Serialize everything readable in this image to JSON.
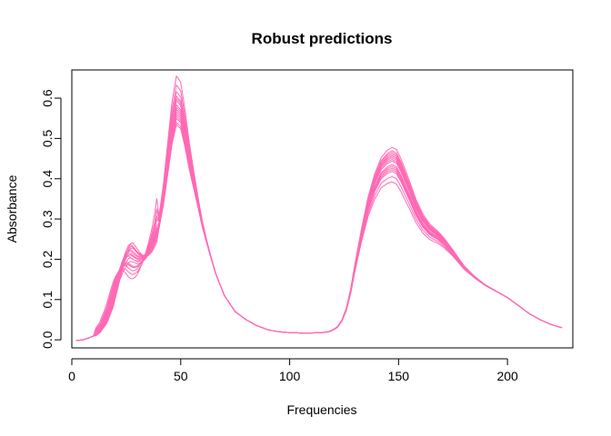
{
  "chart_data": {
    "type": "line",
    "title": "Robust predictions",
    "xlabel": "Frequencies",
    "ylabel": "Absorbance",
    "xlim": [
      0,
      230
    ],
    "ylim": [
      -0.02,
      0.67
    ],
    "xticks": [
      0,
      50,
      100,
      150,
      200
    ],
    "yticks": [
      0.0,
      0.1,
      0.2,
      0.3,
      0.4,
      0.5,
      0.6
    ],
    "ytick_labels": [
      "0.0",
      "0.1",
      "0.2",
      "0.3",
      "0.4",
      "0.5",
      "0.6"
    ],
    "line_color": "#ff69b4",
    "grid": false,
    "legend": "none",
    "base_curve": {
      "x": [
        2,
        5,
        8,
        10,
        12,
        15,
        18,
        20,
        22,
        24,
        26,
        27,
        28,
        30,
        32,
        34,
        36,
        38,
        40,
        42,
        44,
        46,
        48,
        50,
        52,
        54,
        56,
        58,
        60,
        63,
        66,
        70,
        75,
        80,
        85,
        90,
        95,
        100,
        105,
        110,
        115,
        118,
        120,
        122,
        124,
        126,
        128,
        130,
        133,
        136,
        139,
        142,
        145,
        147,
        149,
        151,
        153,
        155,
        158,
        161,
        164,
        166,
        168,
        171,
        175,
        180,
        185,
        190,
        195,
        200,
        205,
        210,
        215,
        220,
        225
      ],
      "y": [
        -0.002,
        0.0,
        0.005,
        0.01,
        0.018,
        0.04,
        0.08,
        0.12,
        0.16,
        0.19,
        0.21,
        0.212,
        0.208,
        0.2,
        0.198,
        0.205,
        0.22,
        0.245,
        0.28,
        0.34,
        0.42,
        0.5,
        0.55,
        0.54,
        0.49,
        0.43,
        0.38,
        0.33,
        0.28,
        0.22,
        0.165,
        0.11,
        0.07,
        0.05,
        0.035,
        0.025,
        0.02,
        0.018,
        0.017,
        0.017,
        0.018,
        0.02,
        0.025,
        0.032,
        0.048,
        0.075,
        0.12,
        0.18,
        0.26,
        0.33,
        0.38,
        0.415,
        0.43,
        0.435,
        0.43,
        0.41,
        0.385,
        0.36,
        0.32,
        0.29,
        0.27,
        0.262,
        0.255,
        0.24,
        0.215,
        0.18,
        0.155,
        0.135,
        0.12,
        0.105,
        0.085,
        0.065,
        0.05,
        0.038,
        0.03
      ]
    },
    "series_scales": [
      {
        "k1": 1.12,
        "k2": 1.0,
        "k3": 1.06,
        "s": 0.0
      },
      {
        "k1": 1.1,
        "k2": 1.02,
        "k3": 1.1,
        "s": -0.5
      },
      {
        "k1": 1.05,
        "k2": 0.98,
        "k3": 1.05,
        "s": 0.8
      },
      {
        "k1": 1.0,
        "k2": 1.05,
        "k3": 1.02,
        "s": 0.3
      },
      {
        "k1": 0.92,
        "k2": 1.08,
        "k3": 0.98,
        "s": -0.3
      },
      {
        "k1": 0.88,
        "k2": 1.1,
        "k3": 0.96,
        "s": 1.2
      },
      {
        "k1": 0.8,
        "k2": 1.15,
        "k3": 0.93,
        "s": 1.8
      },
      {
        "k1": 0.75,
        "k2": 1.19,
        "k3": 0.9,
        "s": 2.5
      },
      {
        "k1": 1.14,
        "k2": 0.97,
        "k3": 1.08,
        "s": -1.0
      },
      {
        "k1": 1.02,
        "k2": 1.03,
        "k3": 1.04,
        "s": 0.6
      },
      {
        "k1": 0.96,
        "k2": 1.06,
        "k3": 1.0,
        "s": 0.0
      },
      {
        "k1": 0.85,
        "k2": 1.12,
        "k3": 0.97,
        "s": 2.0
      },
      {
        "k1": 1.08,
        "k2": 1.01,
        "k3": 1.07,
        "s": -0.8
      },
      {
        "k1": 0.98,
        "k2": 1.04,
        "k3": 1.03,
        "s": 1.0
      },
      {
        "k1": 0.9,
        "k2": 1.09,
        "k3": 0.99,
        "s": 1.5
      },
      {
        "k1": 1.06,
        "k2": 1.0,
        "k3": 1.05,
        "s": 0.2
      }
    ]
  }
}
